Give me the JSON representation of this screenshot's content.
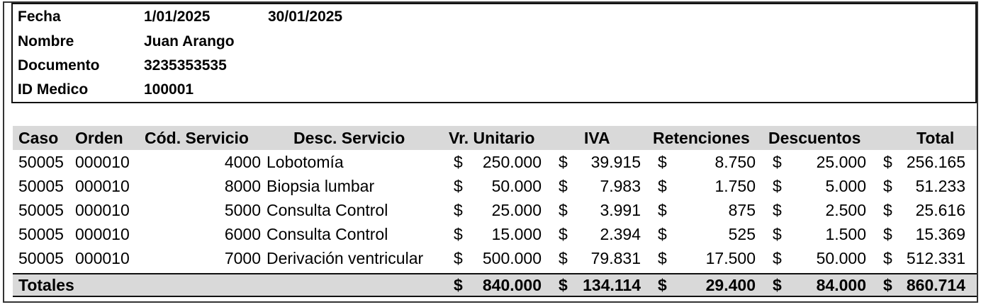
{
  "header": {
    "fecha_label": "Fecha",
    "fecha_inicio": "1/01/2025",
    "fecha_fin": "30/01/2025",
    "nombre_label": "Nombre",
    "nombre_value": "Juan Arango",
    "documento_label": "Documento",
    "documento_value": "3235353535",
    "idmedico_label": "ID Medico",
    "idmedico_value": "100001"
  },
  "table": {
    "columns": [
      "Caso",
      "Orden",
      "Cód. Servicio",
      "Desc. Servicio",
      "Vr. Unitario",
      "IVA",
      "Retenciones",
      "Descuentos",
      "Total"
    ],
    "currency_symbol": "$",
    "rows": [
      {
        "caso": "50005",
        "orden": "000010",
        "cod": "4000",
        "desc": "Lobotomía",
        "vr_unitario": "250.000",
        "iva": "39.915",
        "retenciones": "8.750",
        "descuentos": "25.000",
        "total": "256.165"
      },
      {
        "caso": "50005",
        "orden": "000010",
        "cod": "8000",
        "desc": "Biopsia lumbar",
        "vr_unitario": "50.000",
        "iva": "7.983",
        "retenciones": "1.750",
        "descuentos": "5.000",
        "total": "51.233"
      },
      {
        "caso": "50005",
        "orden": "000010",
        "cod": "5000",
        "desc": "Consulta Control",
        "vr_unitario": "25.000",
        "iva": "3.991",
        "retenciones": "875",
        "descuentos": "2.500",
        "total": "25.616"
      },
      {
        "caso": "50005",
        "orden": "000010",
        "cod": "6000",
        "desc": "Consulta Control",
        "vr_unitario": "15.000",
        "iva": "2.394",
        "retenciones": "525",
        "descuentos": "1.500",
        "total": "15.369"
      },
      {
        "caso": "50005",
        "orden": "000010",
        "cod": "7000",
        "desc": "Derivación ventricular",
        "vr_unitario": "500.000",
        "iva": "79.831",
        "retenciones": "17.500",
        "descuentos": "50.000",
        "total": "512.331"
      }
    ],
    "totals": {
      "label": "Totales",
      "vr_unitario": "840.000",
      "iva": "134.114",
      "retenciones": "29.400",
      "descuentos": "84.000",
      "total": "860.714"
    }
  }
}
